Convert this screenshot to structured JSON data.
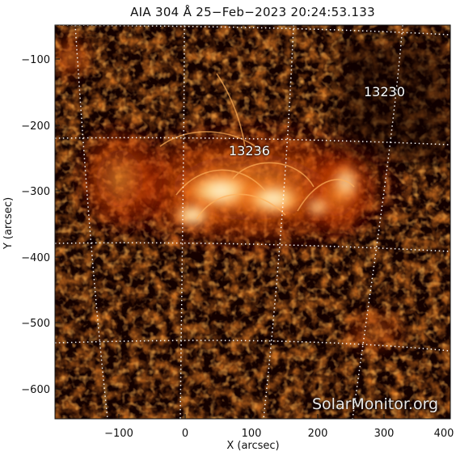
{
  "title": "AIA 304 Å 25−Feb−2023 20:24:53.133",
  "xlabel": "X (arcsec)",
  "ylabel": "Y (arcsec)",
  "x_ticks": [
    "−100",
    "0",
    "100",
    "200",
    "300",
    "400"
  ],
  "y_ticks": [
    "−100",
    "−200",
    "−300",
    "−400",
    "−500",
    "−600"
  ],
  "regions": [
    {
      "label": "13230"
    },
    {
      "label": "13236"
    }
  ],
  "watermark": "SolarMonitor.org",
  "colors": {
    "background": "#0c0000",
    "hot_core": "#fff4d8",
    "bright": "#ff8a1a",
    "mid": "#b82b00",
    "dim": "#4a0800",
    "grid": "#ffffff"
  }
}
